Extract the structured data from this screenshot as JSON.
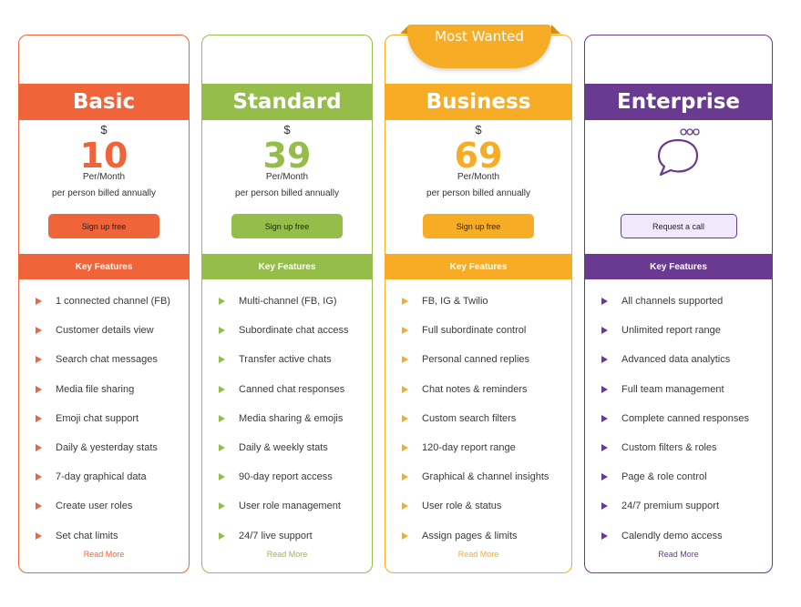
{
  "ribbon": "Most Wanted",
  "plans": [
    {
      "name": "Basic",
      "color": "#f0643a",
      "currency": "$",
      "price": "10",
      "period": "Per/Month",
      "billing": "per person billed annually",
      "cta": "Sign up free",
      "features_title": "Key Features",
      "features": [
        "1 connected channel (FB)",
        "Customer details view",
        "Search chat messages",
        "Media file sharing",
        "Emoji chat support",
        "Daily & yesterday stats",
        "7-day graphical data",
        "Create user roles",
        "Set chat limits"
      ],
      "read_more": "Read More"
    },
    {
      "name": "Standard",
      "color": "#94bd4a",
      "currency": "$",
      "price": "39",
      "period": "Per/Month",
      "billing": "per person billed annually",
      "cta": "Sign up free",
      "features_title": "Key Features",
      "features": [
        "Multi-channel (FB, IG)",
        "Subordinate chat access",
        "Transfer active chats",
        "Canned chat responses",
        "Media sharing & emojis",
        "Daily & weekly stats",
        "90-day report access",
        "User role management",
        "24/7 live support"
      ],
      "read_more": "Read More"
    },
    {
      "name": "Business",
      "color": "#f7ac26",
      "currency": "$",
      "price": "69",
      "period": "Per/Month",
      "billing": "per person billed annually",
      "cta": "Sign up free",
      "features_title": "Key Features",
      "features": [
        "FB, IG & Twilio",
        "Full subordinate control",
        "Personal canned replies",
        "Chat notes & reminders",
        "Custom search filters",
        "120-day report range",
        "Graphical & channel insights",
        "User role & status",
        "Assign pages & limits"
      ],
      "read_more": "Read More"
    },
    {
      "name": "Enterprise",
      "color": "#6a3a91",
      "cta": "Request a call",
      "features_title": "Key Features",
      "features": [
        "All channels supported",
        "Unlimited report range",
        "Advanced data analytics",
        "Full team management",
        "Complete canned responses",
        "Custom filters & roles",
        "Page & role control",
        "24/7 premium support",
        "Calendly demo access"
      ],
      "read_more": "Read More"
    }
  ]
}
